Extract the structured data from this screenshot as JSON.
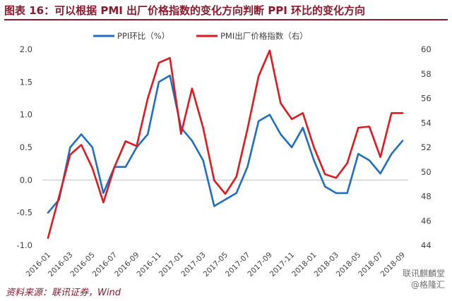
{
  "header": {
    "title": "图表 16：可以根据 PMI 出厂价格指数的变化方向判断 PPI 环比的变化方向"
  },
  "footer": {
    "source": "资料来源：联讯证券，Wind"
  },
  "watermark": {
    "line1": "联讯麒麟堂",
    "line2": "@格隆汇"
  },
  "colors": {
    "ppi": "#1f6fc0",
    "pmi": "#e0191e",
    "title": "#8a1a2c",
    "axis": "#bfbfbf"
  },
  "chart_data": {
    "type": "line",
    "x": [
      "2016-01",
      "2016-02",
      "2016-03",
      "2016-04",
      "2016-05",
      "2016-06",
      "2016-07",
      "2016-08",
      "2016-09",
      "2016-10",
      "2016-11",
      "2016-12",
      "2017-01",
      "2017-02",
      "2017-03",
      "2017-04",
      "2017-05",
      "2017-06",
      "2017-07",
      "2017-08",
      "2017-09",
      "2017-10",
      "2017-11",
      "2017-12",
      "2018-01",
      "2018-02",
      "2018-03",
      "2018-04",
      "2018-05",
      "2018-06",
      "2018-07",
      "2018-08",
      "2018-09"
    ],
    "xtick_labels": [
      "2016-01",
      "2016-03",
      "2016-05",
      "2016-07",
      "2016-09",
      "2016-11",
      "2017-01",
      "2017-03",
      "2017-05",
      "2017-07",
      "2017-09",
      "2017-11",
      "2018-01",
      "2018-03",
      "2018-05",
      "2018-07",
      "2018-09"
    ],
    "left_axis": {
      "ylim": [
        -1.0,
        2.0
      ],
      "ticks": [
        "2.0",
        "1.5",
        "1.0",
        "0.5",
        "0.0",
        "-0.5",
        "-1.0"
      ]
    },
    "right_axis": {
      "ylim": [
        44,
        60
      ],
      "ticks": [
        "60",
        "58",
        "56",
        "54",
        "52",
        "50",
        "48",
        "46",
        "44"
      ]
    },
    "legend_position": "top",
    "series": [
      {
        "name": "PPI环比（%）",
        "axis": "left",
        "values": [
          -0.5,
          -0.3,
          0.5,
          0.7,
          0.5,
          -0.2,
          0.2,
          0.2,
          0.5,
          0.7,
          1.5,
          1.6,
          0.8,
          0.6,
          0.3,
          -0.4,
          -0.3,
          -0.2,
          0.2,
          0.9,
          1.0,
          0.7,
          0.5,
          0.8,
          0.3,
          -0.1,
          -0.2,
          -0.2,
          0.4,
          0.3,
          0.1,
          0.4,
          0.6
        ]
      },
      {
        "name": "PMI出厂价格指数（右）",
        "axis": "right",
        "values": [
          44.6,
          48.0,
          51.4,
          52.2,
          50.3,
          47.5,
          50.4,
          52.5,
          52.1,
          56.0,
          58.9,
          59.3,
          53.1,
          56.8,
          53.6,
          49.3,
          48.2,
          49.6,
          53.5,
          57.8,
          59.9,
          55.6,
          54.3,
          54.8,
          52.0,
          49.8,
          49.5,
          50.7,
          53.6,
          53.7,
          51.2,
          54.8,
          54.8
        ]
      }
    ]
  }
}
